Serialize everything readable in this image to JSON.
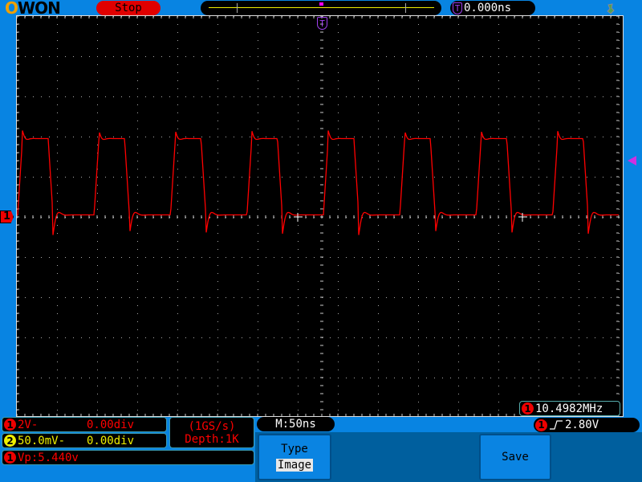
{
  "header": {
    "logo": "OWON",
    "run_state": "Stop",
    "trigger_time": "0.000ns",
    "trigger_marker": "T",
    "usb_icon": "usb-icon"
  },
  "channel1_marker": "1",
  "channels": [
    {
      "id": "1",
      "scale": "2V-",
      "offset": "0.00div",
      "color": "#ff0000"
    },
    {
      "id": "2",
      "scale": "50.0mV-",
      "offset": "0.00div",
      "color": "#eeee00"
    }
  ],
  "acquisition": {
    "sample_rate": "(1GS/s)",
    "depth": "Depth:1K"
  },
  "measurement": {
    "channel": "1",
    "text": "Vp:5.440v"
  },
  "timebase": "M:50ns",
  "frequency": {
    "channel": "1",
    "value": "10.4982MHz"
  },
  "trigger": {
    "channel": "1",
    "edge_icon": "rising-edge-icon",
    "level": "2.80V"
  },
  "menu": {
    "type_label": "Type",
    "type_value": "Image",
    "save_label": "Save"
  },
  "waveform": {
    "channel": "1",
    "time_per_div_ns": 50,
    "volts_per_div": 2,
    "period_ns": 95.25,
    "high_time_ns": 38,
    "first_rising_edge_ns": 2,
    "high_level_v": 3.9,
    "low_level_v": 0.1,
    "overshoot_v": 0.4,
    "trigger_level_v": 2.8,
    "color": "#ff0000"
  }
}
